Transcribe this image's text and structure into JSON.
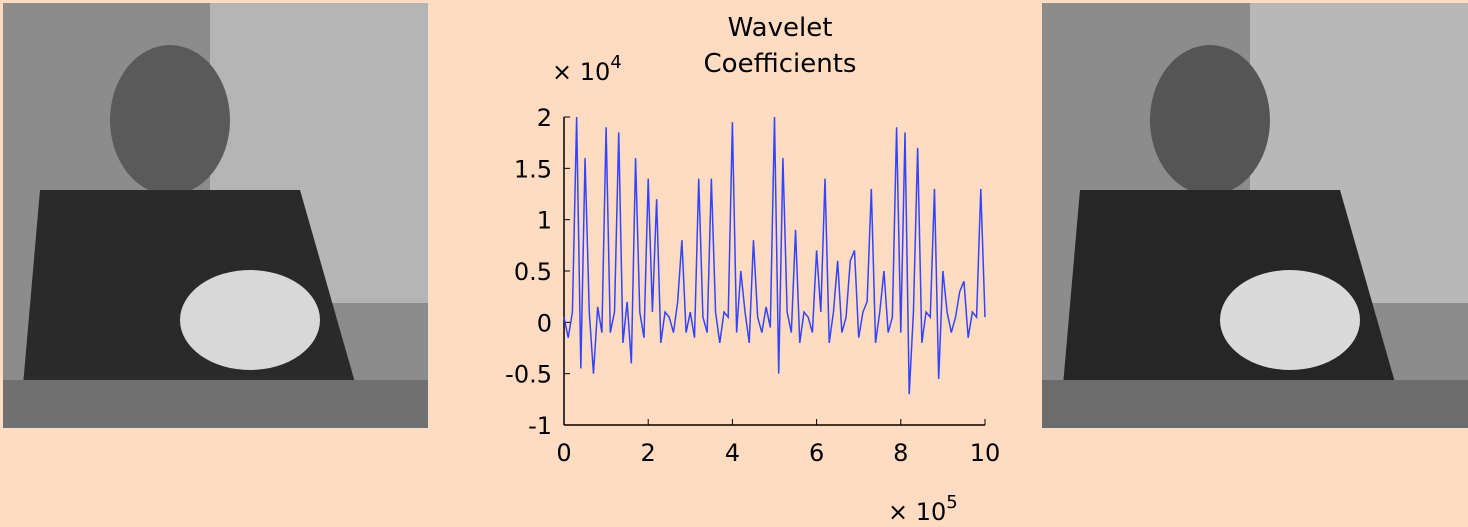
{
  "chart_data": {
    "type": "line",
    "title": "Wavelet Coefficients",
    "y_multiplier": {
      "base": "× 10",
      "exponent": "4"
    },
    "x_multiplier": {
      "base": "× 10",
      "exponent": "5"
    },
    "xlim": [
      0,
      10
    ],
    "xticks": [
      0,
      2,
      4,
      6,
      8,
      10
    ],
    "ylim": [
      -1,
      2
    ],
    "yticks": [
      -1,
      -0.5,
      0,
      0.5,
      1,
      1.5,
      2
    ],
    "grid": false,
    "x": [
      0,
      0.1,
      0.2,
      0.3,
      0.4,
      0.5,
      0.6,
      0.7,
      0.8,
      0.9,
      1,
      1.1,
      1.2,
      1.3,
      1.4,
      1.5,
      1.6,
      1.7,
      1.8,
      1.9,
      2,
      2.1,
      2.2,
      2.3,
      2.4,
      2.5,
      2.6,
      2.7,
      2.8,
      2.9,
      3,
      3.1,
      3.2,
      3.3,
      3.4,
      3.5,
      3.6,
      3.7,
      3.8,
      3.9,
      4,
      4.1,
      4.2,
      4.3,
      4.4,
      4.5,
      4.6,
      4.7,
      4.8,
      4.9,
      5,
      5.1,
      5.2,
      5.3,
      5.4,
      5.5,
      5.6,
      5.7,
      5.8,
      5.9,
      6,
      6.1,
      6.2,
      6.3,
      6.4,
      6.5,
      6.6,
      6.7,
      6.8,
      6.9,
      7,
      7.1,
      7.2,
      7.3,
      7.4,
      7.5,
      7.6,
      7.7,
      7.8,
      7.9,
      8,
      8.1,
      8.2,
      8.3,
      8.4,
      8.5,
      8.6,
      8.7,
      8.8,
      8.9,
      9,
      9.1,
      9.2,
      9.3,
      9.4,
      9.5,
      9.6,
      9.7,
      9.8,
      9.9,
      10
    ],
    "series": [
      {
        "color": "#3344ff",
        "values": [
          0.05,
          -0.15,
          0.1,
          2.0,
          -0.45,
          1.6,
          0.1,
          -0.5,
          0.15,
          -0.1,
          1.9,
          -0.1,
          0.1,
          1.85,
          -0.2,
          0.2,
          -0.4,
          1.6,
          0.1,
          -0.15,
          1.4,
          0.1,
          1.2,
          -0.2,
          0.1,
          0.05,
          -0.1,
          0.2,
          0.8,
          -0.1,
          0.1,
          -0.15,
          1.4,
          0.05,
          -0.1,
          1.4,
          0.1,
          -0.2,
          0.1,
          0.05,
          1.95,
          -0.1,
          0.5,
          0.1,
          -0.2,
          0.8,
          0.05,
          -0.1,
          0.15,
          -0.05,
          2.0,
          -0.5,
          1.6,
          0.1,
          -0.1,
          0.9,
          -0.2,
          0.1,
          0.05,
          -0.1,
          0.7,
          0.1,
          1.4,
          -0.2,
          0.1,
          0.6,
          -0.1,
          0.05,
          0.6,
          0.7,
          -0.15,
          0.1,
          0.2,
          1.3,
          -0.2,
          0.1,
          0.5,
          -0.1,
          0.05,
          1.9,
          -0.1,
          1.85,
          -0.7,
          0.1,
          1.7,
          -0.2,
          0.1,
          0.05,
          1.3,
          -0.55,
          0.5,
          0.1,
          -0.1,
          0.05,
          0.3,
          0.4,
          -0.15,
          0.1,
          0.05,
          1.3,
          0.05
        ]
      }
    ]
  }
}
